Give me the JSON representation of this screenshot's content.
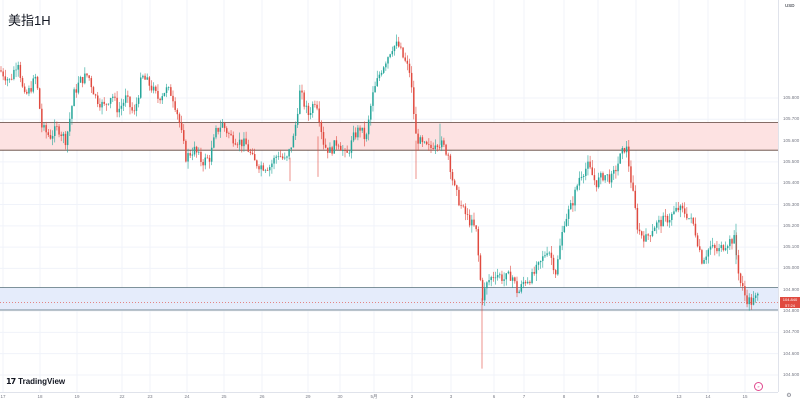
{
  "title": "美指1H",
  "brand": {
    "logo_mark": "17",
    "name": "TradingView"
  },
  "price_axis": {
    "currency": "USD",
    "current_price": "104.840",
    "countdown": "57:24"
  },
  "colors": {
    "up": "#26a69a",
    "down": "#e04a3f",
    "wick_up": "#26a69a",
    "wick_down": "#e04a3f",
    "resistance_zone_fill": "#fde2e2",
    "resistance_zone_line": "#5d4037",
    "support_zone_fill": "#e5ecfb",
    "support_zone_line": "#546e7a",
    "grid": "#f0f3fa"
  },
  "icons": {
    "settings": "gear-icon",
    "goto": "scroll-to-realtime-icon",
    "collapse": "chevron-right-icon"
  },
  "chart_data": {
    "type": "candlestick",
    "timeframe": "1H",
    "y_ticks": [
      "105.800",
      "105.700",
      "105.600",
      "105.500",
      "105.400",
      "105.300",
      "105.200",
      "105.100",
      "105.000",
      "104.900",
      "104.800",
      "104.700",
      "104.600",
      "104.500"
    ],
    "ylim": [
      104.42,
      106.26
    ],
    "x_ticks": [
      "17",
      "18",
      "19",
      "22",
      "23",
      "24",
      "25",
      "26",
      "29",
      "30",
      "5月",
      "2",
      "3",
      "6",
      "7",
      "8",
      "9",
      "10",
      "13",
      "14",
      "15"
    ],
    "zones": [
      {
        "name": "resistance",
        "from": 105.555,
        "to": 105.685
      },
      {
        "name": "support",
        "from": 104.805,
        "to": 104.91
      }
    ],
    "price_path": [
      [
        0,
        105.93
      ],
      [
        10,
        105.88
      ],
      [
        18,
        105.98
      ],
      [
        24,
        105.8
      ],
      [
        30,
        105.84
      ],
      [
        36,
        105.9
      ],
      [
        42,
        105.66
      ],
      [
        50,
        105.62
      ],
      [
        58,
        105.66
      ],
      [
        66,
        105.6
      ],
      [
        74,
        105.82
      ],
      [
        80,
        105.88
      ],
      [
        88,
        105.91
      ],
      [
        96,
        105.8
      ],
      [
        104,
        105.76
      ],
      [
        112,
        105.82
      ],
      [
        118,
        105.74
      ],
      [
        126,
        105.8
      ],
      [
        134,
        105.72
      ],
      [
        142,
        105.9
      ],
      [
        150,
        105.86
      ],
      [
        158,
        105.8
      ],
      [
        166,
        105.84
      ],
      [
        172,
        105.82
      ],
      [
        178,
        105.72
      ],
      [
        186,
        105.52
      ],
      [
        194,
        105.56
      ],
      [
        202,
        105.5
      ],
      [
        210,
        105.52
      ],
      [
        216,
        105.64
      ],
      [
        222,
        105.68
      ],
      [
        230,
        105.62
      ],
      [
        238,
        105.6
      ],
      [
        246,
        105.58
      ],
      [
        254,
        105.5
      ],
      [
        262,
        105.48
      ],
      [
        270,
        105.48
      ],
      [
        278,
        105.54
      ],
      [
        286,
        105.5
      ],
      [
        294,
        105.62
      ],
      [
        300,
        105.83
      ],
      [
        308,
        105.72
      ],
      [
        316,
        105.8
      ],
      [
        324,
        105.58
      ],
      [
        330,
        105.55
      ],
      [
        338,
        105.6
      ],
      [
        346,
        105.52
      ],
      [
        354,
        105.62
      ],
      [
        360,
        105.66
      ],
      [
        366,
        105.6
      ],
      [
        372,
        105.8
      ],
      [
        380,
        105.92
      ],
      [
        386,
        105.98
      ],
      [
        392,
        106.04
      ],
      [
        398,
        106.05
      ],
      [
        404,
        105.98
      ],
      [
        410,
        105.92
      ],
      [
        416,
        105.62
      ],
      [
        422,
        105.58
      ],
      [
        430,
        105.56
      ],
      [
        436,
        105.6
      ],
      [
        442,
        105.58
      ],
      [
        448,
        105.54
      ],
      [
        454,
        105.38
      ],
      [
        462,
        105.28
      ],
      [
        470,
        105.22
      ],
      [
        476,
        105.18
      ],
      [
        482,
        104.86
      ],
      [
        488,
        104.94
      ],
      [
        496,
        104.98
      ],
      [
        504,
        104.95
      ],
      [
        512,
        104.97
      ],
      [
        518,
        104.88
      ],
      [
        524,
        104.94
      ],
      [
        532,
        104.96
      ],
      [
        540,
        105.02
      ],
      [
        548,
        105.1
      ],
      [
        556,
        104.98
      ],
      [
        564,
        105.22
      ],
      [
        572,
        105.3
      ],
      [
        580,
        105.44
      ],
      [
        588,
        105.48
      ],
      [
        596,
        105.4
      ],
      [
        604,
        105.44
      ],
      [
        612,
        105.42
      ],
      [
        620,
        105.52
      ],
      [
        626,
        105.58
      ],
      [
        632,
        105.38
      ],
      [
        638,
        105.18
      ],
      [
        646,
        105.14
      ],
      [
        654,
        105.2
      ],
      [
        662,
        105.22
      ],
      [
        670,
        105.24
      ],
      [
        678,
        105.28
      ],
      [
        686,
        105.26
      ],
      [
        694,
        105.2
      ],
      [
        702,
        105.04
      ],
      [
        710,
        105.1
      ],
      [
        718,
        105.08
      ],
      [
        726,
        105.12
      ],
      [
        734,
        105.14
      ],
      [
        740,
        104.94
      ],
      [
        746,
        104.86
      ],
      [
        752,
        104.84
      ],
      [
        758,
        104.87
      ]
    ],
    "last": 104.84
  }
}
